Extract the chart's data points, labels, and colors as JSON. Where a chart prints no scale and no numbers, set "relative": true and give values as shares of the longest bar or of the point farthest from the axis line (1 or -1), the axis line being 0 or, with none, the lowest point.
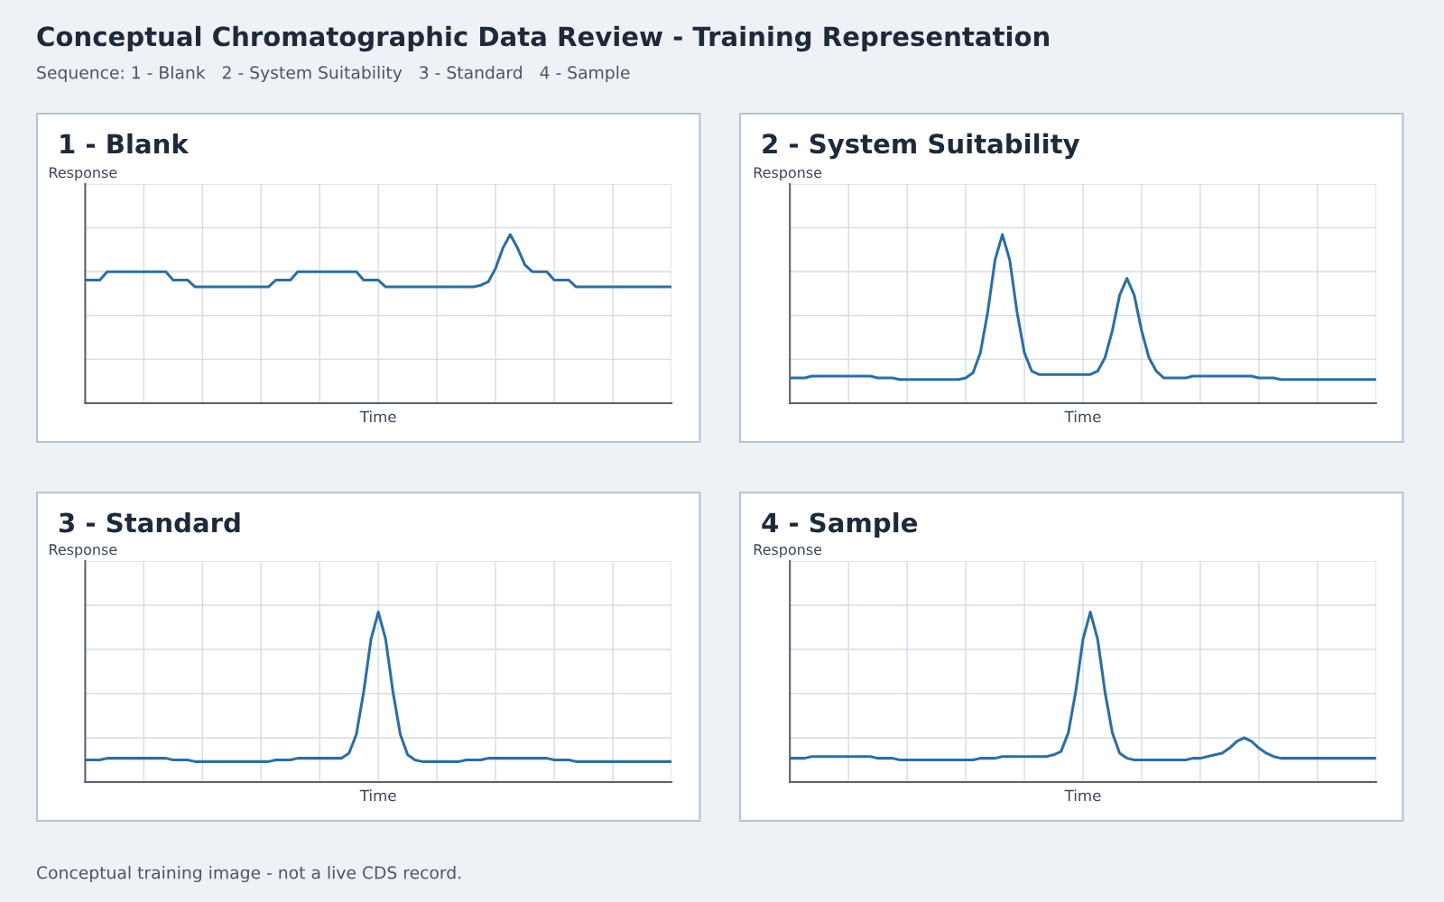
{
  "chart_data": [
    {
      "type": "line",
      "title": "1 - Blank",
      "xlabel": "Time",
      "ylabel": "Response",
      "relative": true,
      "grid": true,
      "tick_labels": false,
      "categories": [
        null,
        null,
        null,
        null,
        null,
        null,
        null,
        null,
        null,
        null,
        null,
        null,
        null,
        null,
        null,
        null,
        null,
        null,
        null,
        null,
        null,
        null,
        null,
        null,
        null,
        null,
        null,
        null,
        null,
        null,
        null,
        null,
        null,
        null,
        null,
        null,
        null,
        null,
        null,
        null,
        null,
        null,
        null,
        null,
        null,
        null,
        null,
        null,
        null,
        null,
        null,
        null,
        null,
        null,
        null,
        null,
        null,
        null,
        null,
        null,
        null,
        null,
        null,
        null,
        null,
        null,
        null,
        null,
        null,
        null,
        null,
        null,
        null,
        null,
        null,
        null,
        null,
        null,
        null,
        null,
        null
      ],
      "series": [
        {
          "color": "#2c6ea4",
          "values": [
            0.73,
            0.73,
            0.73,
            0.78,
            0.78,
            0.78,
            0.78,
            0.78,
            0.78,
            0.78,
            0.78,
            0.78,
            0.73,
            0.73,
            0.73,
            0.69,
            0.69,
            0.69,
            0.69,
            0.69,
            0.69,
            0.69,
            0.69,
            0.69,
            0.69,
            0.69,
            0.73,
            0.73,
            0.73,
            0.78,
            0.78,
            0.78,
            0.78,
            0.78,
            0.78,
            0.78,
            0.78,
            0.78,
            0.73,
            0.73,
            0.73,
            0.69,
            0.69,
            0.69,
            0.69,
            0.69,
            0.69,
            0.69,
            0.69,
            0.69,
            0.69,
            0.69,
            0.69,
            0.69,
            0.7,
            0.72,
            0.8,
            0.92,
            1.0,
            0.92,
            0.82,
            0.78,
            0.78,
            0.78,
            0.73,
            0.73,
            0.73,
            0.69,
            0.69,
            0.69,
            0.69,
            0.69,
            0.69,
            0.69,
            0.69,
            0.69,
            0.69,
            0.69,
            0.69,
            0.69,
            0.69
          ]
        }
      ]
    },
    {
      "type": "line",
      "title": "2 - System Suitability",
      "xlabel": "Time",
      "ylabel": "Response",
      "relative": true,
      "grid": true,
      "tick_labels": false,
      "categories": [
        null,
        null,
        null,
        null,
        null,
        null,
        null,
        null,
        null,
        null,
        null,
        null,
        null,
        null,
        null,
        null,
        null,
        null,
        null,
        null,
        null,
        null,
        null,
        null,
        null,
        null,
        null,
        null,
        null,
        null,
        null,
        null,
        null,
        null,
        null,
        null,
        null,
        null,
        null,
        null,
        null,
        null,
        null,
        null,
        null,
        null,
        null,
        null,
        null,
        null,
        null,
        null,
        null,
        null,
        null,
        null,
        null,
        null,
        null,
        null,
        null,
        null,
        null,
        null,
        null,
        null,
        null,
        null,
        null,
        null,
        null,
        null,
        null,
        null,
        null,
        null,
        null,
        null,
        null,
        null,
        null
      ],
      "series": [
        {
          "color": "#2c6ea4",
          "values": [
            0.15,
            0.15,
            0.15,
            0.16,
            0.16,
            0.16,
            0.16,
            0.16,
            0.16,
            0.16,
            0.16,
            0.16,
            0.15,
            0.15,
            0.15,
            0.14,
            0.14,
            0.14,
            0.14,
            0.14,
            0.14,
            0.14,
            0.14,
            0.14,
            0.15,
            0.18,
            0.3,
            0.54,
            0.85,
            1.0,
            0.85,
            0.54,
            0.3,
            0.19,
            0.17,
            0.17,
            0.17,
            0.17,
            0.17,
            0.17,
            0.17,
            0.17,
            0.19,
            0.27,
            0.43,
            0.64,
            0.74,
            0.64,
            0.43,
            0.27,
            0.19,
            0.15,
            0.15,
            0.15,
            0.15,
            0.16,
            0.16,
            0.16,
            0.16,
            0.16,
            0.16,
            0.16,
            0.16,
            0.16,
            0.15,
            0.15,
            0.15,
            0.14,
            0.14,
            0.14,
            0.14,
            0.14,
            0.14,
            0.14,
            0.14,
            0.14,
            0.14,
            0.14,
            0.14,
            0.14,
            0.14
          ]
        }
      ]
    },
    {
      "type": "line",
      "title": "3 - Standard",
      "xlabel": "Time",
      "ylabel": "Response",
      "relative": true,
      "grid": true,
      "tick_labels": false,
      "categories": [
        null,
        null,
        null,
        null,
        null,
        null,
        null,
        null,
        null,
        null,
        null,
        null,
        null,
        null,
        null,
        null,
        null,
        null,
        null,
        null,
        null,
        null,
        null,
        null,
        null,
        null,
        null,
        null,
        null,
        null,
        null,
        null,
        null,
        null,
        null,
        null,
        null,
        null,
        null,
        null,
        null,
        null,
        null,
        null,
        null,
        null,
        null,
        null,
        null,
        null,
        null,
        null,
        null,
        null,
        null,
        null,
        null,
        null,
        null,
        null,
        null,
        null,
        null,
        null,
        null,
        null,
        null,
        null,
        null,
        null,
        null,
        null,
        null,
        null,
        null,
        null,
        null,
        null,
        null,
        null,
        null
      ],
      "series": [
        {
          "color": "#2c6ea4",
          "values": [
            0.13,
            0.13,
            0.13,
            0.14,
            0.14,
            0.14,
            0.14,
            0.14,
            0.14,
            0.14,
            0.14,
            0.14,
            0.13,
            0.13,
            0.13,
            0.12,
            0.12,
            0.12,
            0.12,
            0.12,
            0.12,
            0.12,
            0.12,
            0.12,
            0.12,
            0.12,
            0.13,
            0.13,
            0.13,
            0.14,
            0.14,
            0.14,
            0.14,
            0.14,
            0.14,
            0.14,
            0.17,
            0.28,
            0.53,
            0.84,
            1.0,
            0.84,
            0.53,
            0.28,
            0.16,
            0.13,
            0.12,
            0.12,
            0.12,
            0.12,
            0.12,
            0.12,
            0.13,
            0.13,
            0.13,
            0.14,
            0.14,
            0.14,
            0.14,
            0.14,
            0.14,
            0.14,
            0.14,
            0.14,
            0.13,
            0.13,
            0.13,
            0.12,
            0.12,
            0.12,
            0.12,
            0.12,
            0.12,
            0.12,
            0.12,
            0.12,
            0.12,
            0.12,
            0.12,
            0.12,
            0.12
          ]
        }
      ]
    },
    {
      "type": "line",
      "title": "4 - Sample",
      "xlabel": "Time",
      "ylabel": "Response",
      "relative": true,
      "grid": true,
      "tick_labels": false,
      "categories": [
        null,
        null,
        null,
        null,
        null,
        null,
        null,
        null,
        null,
        null,
        null,
        null,
        null,
        null,
        null,
        null,
        null,
        null,
        null,
        null,
        null,
        null,
        null,
        null,
        null,
        null,
        null,
        null,
        null,
        null,
        null,
        null,
        null,
        null,
        null,
        null,
        null,
        null,
        null,
        null,
        null,
        null,
        null,
        null,
        null,
        null,
        null,
        null,
        null,
        null,
        null,
        null,
        null,
        null,
        null,
        null,
        null,
        null,
        null,
        null,
        null,
        null,
        null,
        null,
        null,
        null,
        null,
        null,
        null,
        null,
        null,
        null,
        null,
        null,
        null,
        null,
        null,
        null,
        null,
        null,
        null
      ],
      "series": [
        {
          "color": "#2c6ea4",
          "values": [
            0.14,
            0.14,
            0.14,
            0.15,
            0.15,
            0.15,
            0.15,
            0.15,
            0.15,
            0.15,
            0.15,
            0.15,
            0.14,
            0.14,
            0.14,
            0.13,
            0.13,
            0.13,
            0.13,
            0.13,
            0.13,
            0.13,
            0.13,
            0.13,
            0.13,
            0.13,
            0.14,
            0.14,
            0.14,
            0.15,
            0.15,
            0.15,
            0.15,
            0.15,
            0.15,
            0.15,
            0.16,
            0.18,
            0.29,
            0.53,
            0.84,
            1.0,
            0.84,
            0.53,
            0.29,
            0.17,
            0.14,
            0.13,
            0.13,
            0.13,
            0.13,
            0.13,
            0.13,
            0.13,
            0.13,
            0.14,
            0.14,
            0.15,
            0.16,
            0.17,
            0.2,
            0.24,
            0.26,
            0.24,
            0.2,
            0.17,
            0.15,
            0.14,
            0.14,
            0.14,
            0.14,
            0.14,
            0.14,
            0.14,
            0.14,
            0.14,
            0.14,
            0.14,
            0.14,
            0.14,
            0.14
          ]
        }
      ]
    },
    {
      "type": "other",
      "title": "Conceptual Chromatographic Data Review - Training Representation",
      "subtitle": "Sequence: 1 - Blank   2 - System Suitability   3 - Standard   4 - Sample",
      "annotations": [
        "Conceptual training image - not a live CDS record."
      ]
    }
  ]
}
